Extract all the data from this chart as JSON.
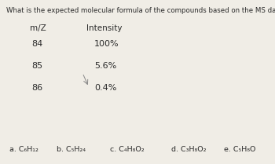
{
  "title": "What is the expected molecular formula of the compounds based on the MS data given:",
  "col1_header": "m/Z",
  "col2_header": "Intensity",
  "rows": [
    {
      "mz": "84",
      "intensity": "100%"
    },
    {
      "mz": "85",
      "intensity": "5.6%"
    },
    {
      "mz": "86",
      "intensity": "0.4%"
    }
  ],
  "options": [
    {
      "label": "a.",
      "formula": "C₆H₁₂"
    },
    {
      "label": "b.",
      "formula": "C₅H₂₄"
    },
    {
      "label": "c.",
      "formula": "C₄H₈O₂"
    },
    {
      "label": "d.",
      "formula": "C₃H₈O₂"
    },
    {
      "label": "e.",
      "formula": "C₅H₈O"
    }
  ],
  "bg_color": "#f0ede6",
  "text_color": "#2a2a2a",
  "font_size_title": 6.2,
  "font_size_header": 7.5,
  "font_size_body": 8.0,
  "font_size_options": 6.8
}
